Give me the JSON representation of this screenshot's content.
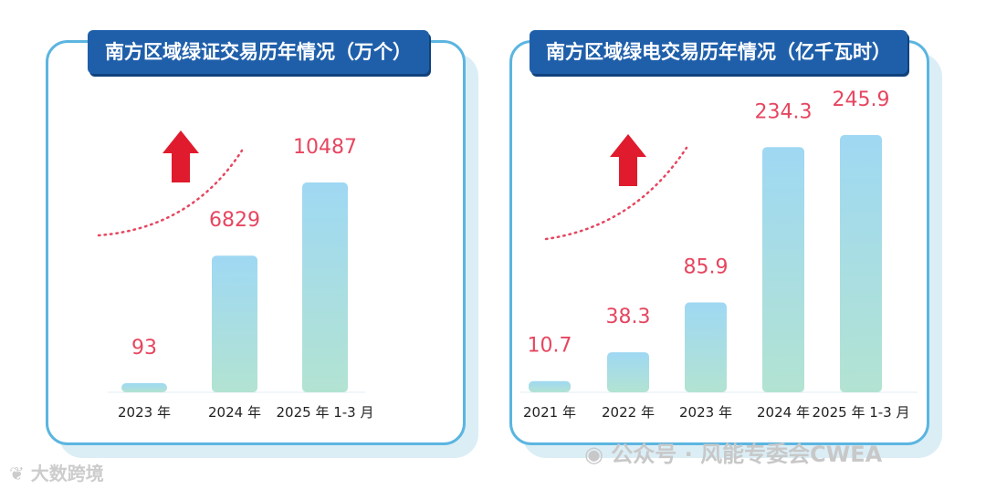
{
  "chart_data": [
    {
      "type": "bar",
      "title": "南方区域绿证交易历年情况（万个）",
      "categories": [
        "2023 年",
        "2024 年",
        "2025 年 1-3 月"
      ],
      "values": [
        93,
        6829,
        10487
      ],
      "value_labels": [
        "93",
        "6829",
        "10487"
      ],
      "ylim": [
        0,
        12000
      ],
      "grid": false,
      "legend": "none",
      "colors": {
        "bar_top": "#9fd8f3",
        "bar_bottom": "#b2e3d2",
        "value_text": "#e64660",
        "arrow": "#e01b2d"
      }
    },
    {
      "type": "bar",
      "title": "南方区域绿电交易历年情况（亿千瓦时）",
      "categories": [
        "2021 年",
        "2022 年",
        "2023 年",
        "2024 年",
        "2025 年 1-3 月"
      ],
      "values": [
        10.7,
        38.3,
        85.9,
        234.3,
        245.9
      ],
      "value_labels": [
        "10.7",
        "38.3",
        "85.9",
        "234.3",
        "245.9"
      ],
      "ylim": [
        0,
        265
      ],
      "grid": false,
      "legend": "none",
      "colors": {
        "bar_top": "#9fd8f3",
        "bar_bottom": "#b2e3d2",
        "value_text": "#e64660",
        "arrow": "#e01b2d"
      }
    }
  ],
  "watermarks": {
    "left": "大数跨境",
    "right": "公众号 · 风能专委会CWEA"
  }
}
